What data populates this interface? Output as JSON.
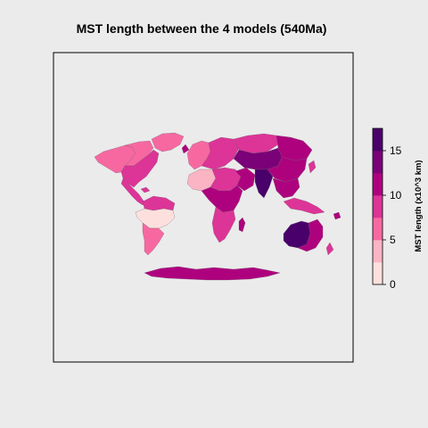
{
  "title": "MST length between the 4 models (540Ma)",
  "legend": {
    "label": "MST length (x10^3 km)",
    "range": [
      0,
      17.5
    ],
    "ticks": [
      {
        "value": 0,
        "label": "0"
      },
      {
        "value": 5,
        "label": "5"
      },
      {
        "value": 10,
        "label": "10"
      },
      {
        "value": 15,
        "label": "15"
      }
    ],
    "colors": [
      "#fde0dd",
      "#fbb4c3",
      "#f768a1",
      "#dd3497",
      "#ae017e",
      "#7a0177",
      "#49006a"
    ]
  },
  "map": {
    "projection": "Robinson-like equal-area world map",
    "background": "#ebebeb",
    "regions": [
      {
        "name": "north-america-west",
        "value": 7
      },
      {
        "name": "north-america-central",
        "value": 5
      },
      {
        "name": "north-america-east",
        "value": 8
      },
      {
        "name": "greenland",
        "value": 7
      },
      {
        "name": "central-america",
        "value": 9
      },
      {
        "name": "south-america-north",
        "value": 8
      },
      {
        "name": "south-america-center",
        "value": 2
      },
      {
        "name": "south-america-south",
        "value": 5
      },
      {
        "name": "europe-west",
        "value": 6
      },
      {
        "name": "europe-east",
        "value": 8
      },
      {
        "name": "north-africa-west",
        "value": 4
      },
      {
        "name": "north-africa-east",
        "value": 9
      },
      {
        "name": "central-africa",
        "value": 11
      },
      {
        "name": "southern-africa",
        "value": 8
      },
      {
        "name": "madagascar",
        "value": 11
      },
      {
        "name": "arabia",
        "value": 12
      },
      {
        "name": "siberia-west",
        "value": 9
      },
      {
        "name": "siberia-east",
        "value": 11
      },
      {
        "name": "central-asia",
        "value": 13
      },
      {
        "name": "india",
        "value": 16
      },
      {
        "name": "china",
        "value": 10
      },
      {
        "name": "southeast-asia",
        "value": 12
      },
      {
        "name": "indonesia",
        "value": 9
      },
      {
        "name": "australia-west",
        "value": 16
      },
      {
        "name": "australia-east",
        "value": 10
      },
      {
        "name": "antarctica",
        "value": 12
      }
    ]
  }
}
